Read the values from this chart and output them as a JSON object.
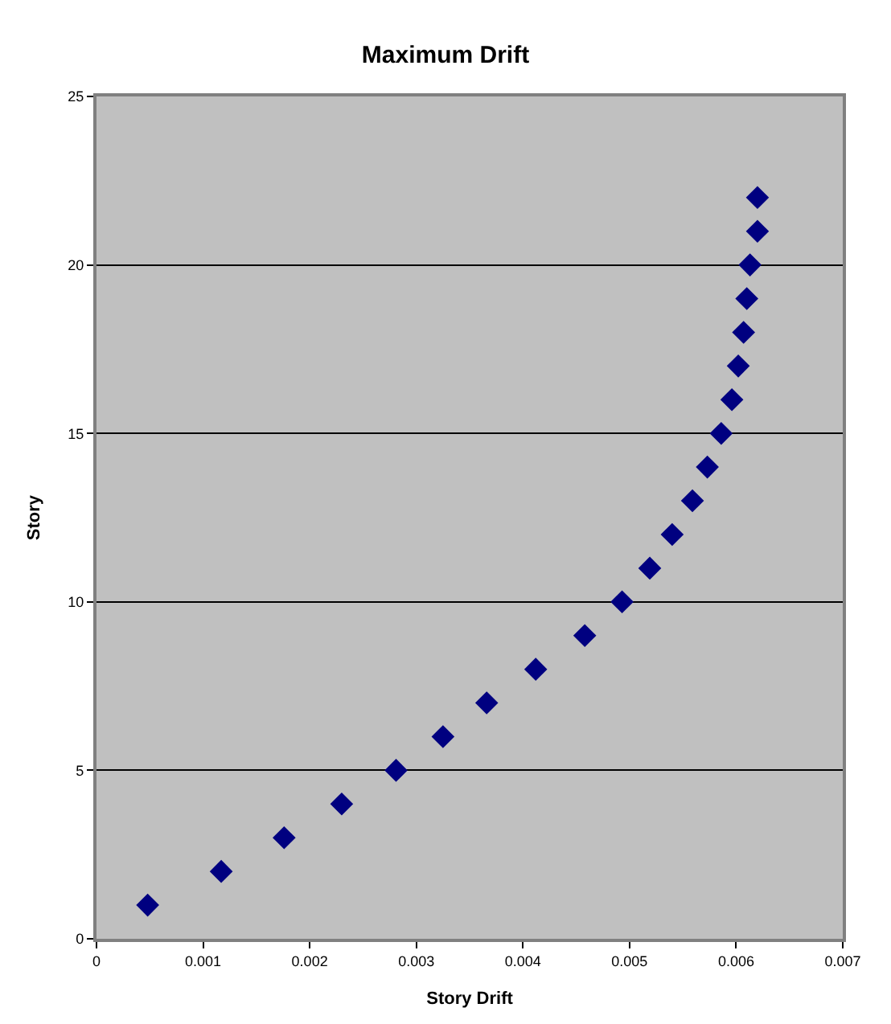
{
  "chart_data": {
    "type": "scatter",
    "title": "Maximum Drift",
    "xlabel": "Story Drift",
    "ylabel": "Story",
    "x": [
      0.00048,
      0.00117,
      0.00176,
      0.0023,
      0.00281,
      0.00325,
      0.00366,
      0.00412,
      0.00458,
      0.00493,
      0.00519,
      0.0054,
      0.00559,
      0.00573,
      0.00586,
      0.00596,
      0.00602,
      0.00607,
      0.0061,
      0.00613,
      0.0062,
      0.0062
    ],
    "series": [
      {
        "color": "#000080",
        "values": [
          1,
          2,
          3,
          4,
          5,
          6,
          7,
          8,
          9,
          10,
          11,
          12,
          13,
          14,
          15,
          16,
          17,
          18,
          19,
          20,
          21,
          22
        ]
      }
    ],
    "xlim": [
      0,
      0.007
    ],
    "xticks": [
      0,
      0.001,
      0.002,
      0.003,
      0.004,
      0.005,
      0.006,
      0.007
    ],
    "ylim": [
      0,
      25
    ],
    "yticks": [
      0,
      5,
      10,
      15,
      20,
      25
    ],
    "grid": "y",
    "marker": "diamond"
  }
}
